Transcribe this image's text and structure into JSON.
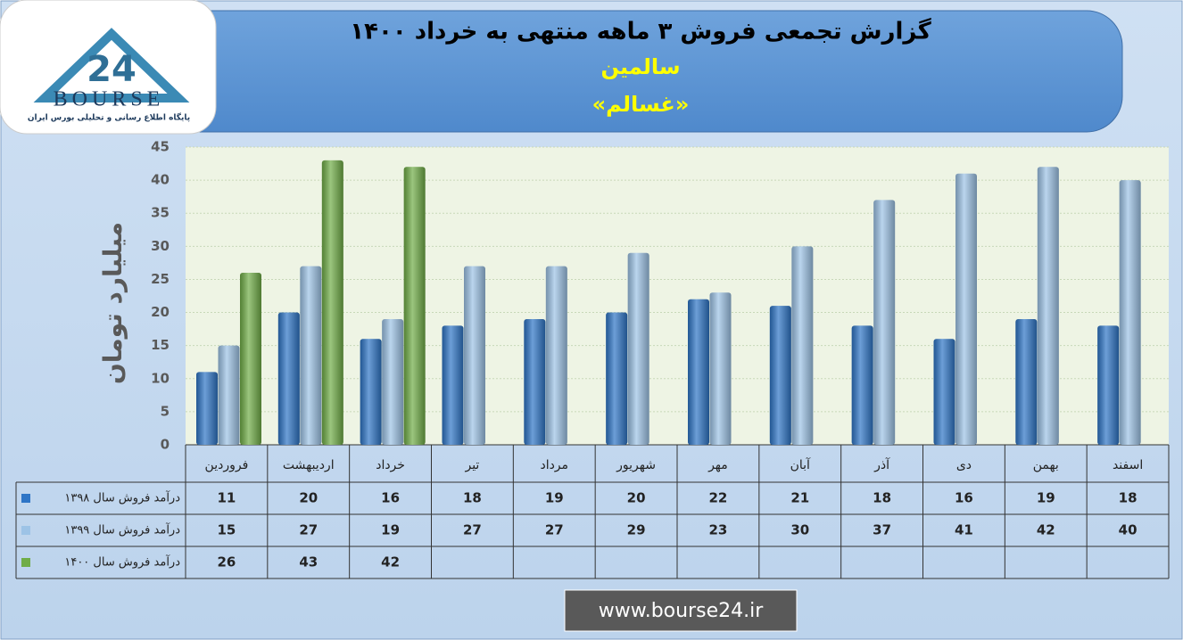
{
  "logo": {
    "mark": "24",
    "name": "BOURSE",
    "tagline": "پایگاه اطلاع رسانی و تحلیلی بورس ایران"
  },
  "footer": {
    "url": "www.bourse24.ir"
  },
  "chart_data": {
    "type": "bar",
    "title": "گزارش تجمعی فروش ۳ ماهه منتهی به خرداد ۱۴۰۰",
    "subtitle": "سالمین",
    "symbol": "«غسالم»",
    "y_label": "میلیارد تومان",
    "categories": [
      "فروردین",
      "اردیبهشت",
      "خرداد",
      "تیر",
      "مرداد",
      "شهریور",
      "مهر",
      "آبان",
      "آذر",
      "دی",
      "بهمن",
      "اسفند"
    ],
    "series": [
      {
        "name": "درآمد فروش سال ۱۳۹۸",
        "color": "#2e75c6",
        "values": [
          11,
          20,
          16,
          18,
          19,
          20,
          22,
          21,
          18,
          16,
          19,
          18
        ]
      },
      {
        "name": "درآمد فروش سال ۱۳۹۹",
        "color": "#9dc3e6",
        "values": [
          15,
          27,
          19,
          27,
          27,
          29,
          23,
          30,
          37,
          41,
          42,
          40
        ]
      },
      {
        "name": "درآمد فروش سال ۱۴۰۰",
        "color": "#70ad47",
        "values": [
          26,
          43,
          42,
          null,
          null,
          null,
          null,
          null,
          null,
          null,
          null,
          null
        ]
      }
    ],
    "ylim": [
      0,
      45
    ],
    "yticks": [
      0,
      5,
      10,
      15,
      20,
      25,
      30,
      35,
      40,
      45
    ],
    "grid": true
  }
}
